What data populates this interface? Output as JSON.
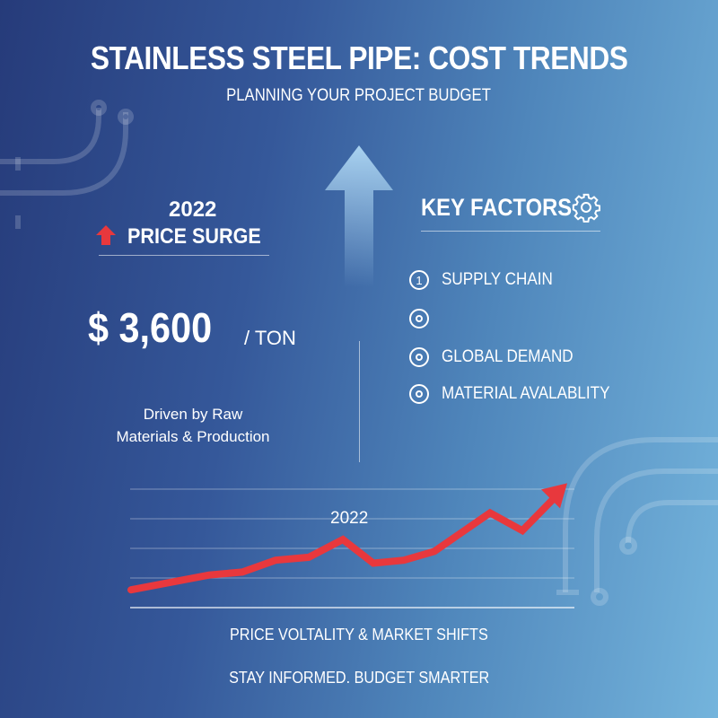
{
  "header": {
    "title": "STAINLESS STEEL PIPE: COST TRENDS",
    "subtitle": "PLANNING YOUR PROJECT BUDGET"
  },
  "surge": {
    "year": "2022",
    "label": "PRICE SURGE",
    "icon": "red-up-arrow-icon",
    "price": "$ 3,600",
    "unit": "/ TON",
    "note_line1": "Driven by Raw",
    "note_line2": "Materials & Production"
  },
  "factors": {
    "title": "KEY FACTORS",
    "icon": "gear-icon",
    "items": [
      {
        "marker": "1",
        "label": "SUPPLY CHAIN"
      },
      {
        "marker": "",
        "label": ""
      },
      {
        "marker": "",
        "label": "GLOBAL DEMAND"
      },
      {
        "marker": "",
        "label": "MATERIAL AVALABLITY"
      }
    ]
  },
  "chart_data": {
    "type": "line",
    "annotation": "2022",
    "series": [
      {
        "values": [
          0.6,
          1.1,
          1.2,
          1.6,
          1.7,
          2.3,
          1.5,
          1.6,
          1.9,
          3.2,
          2.6,
          4.2
        ]
      }
    ],
    "ylim": [
      0,
      4
    ],
    "grid": true,
    "color": "#e8383d",
    "ends_with_arrow": true
  },
  "footer": {
    "caption": "PRICE VOLTALITY & MARKET SHIFTS",
    "tagline": "STAY INFORMED. BUDGET SMARTER"
  },
  "colors": {
    "bg_left": "#263b7a",
    "bg_right": "#74b4dc",
    "accent": "#e8383d"
  }
}
